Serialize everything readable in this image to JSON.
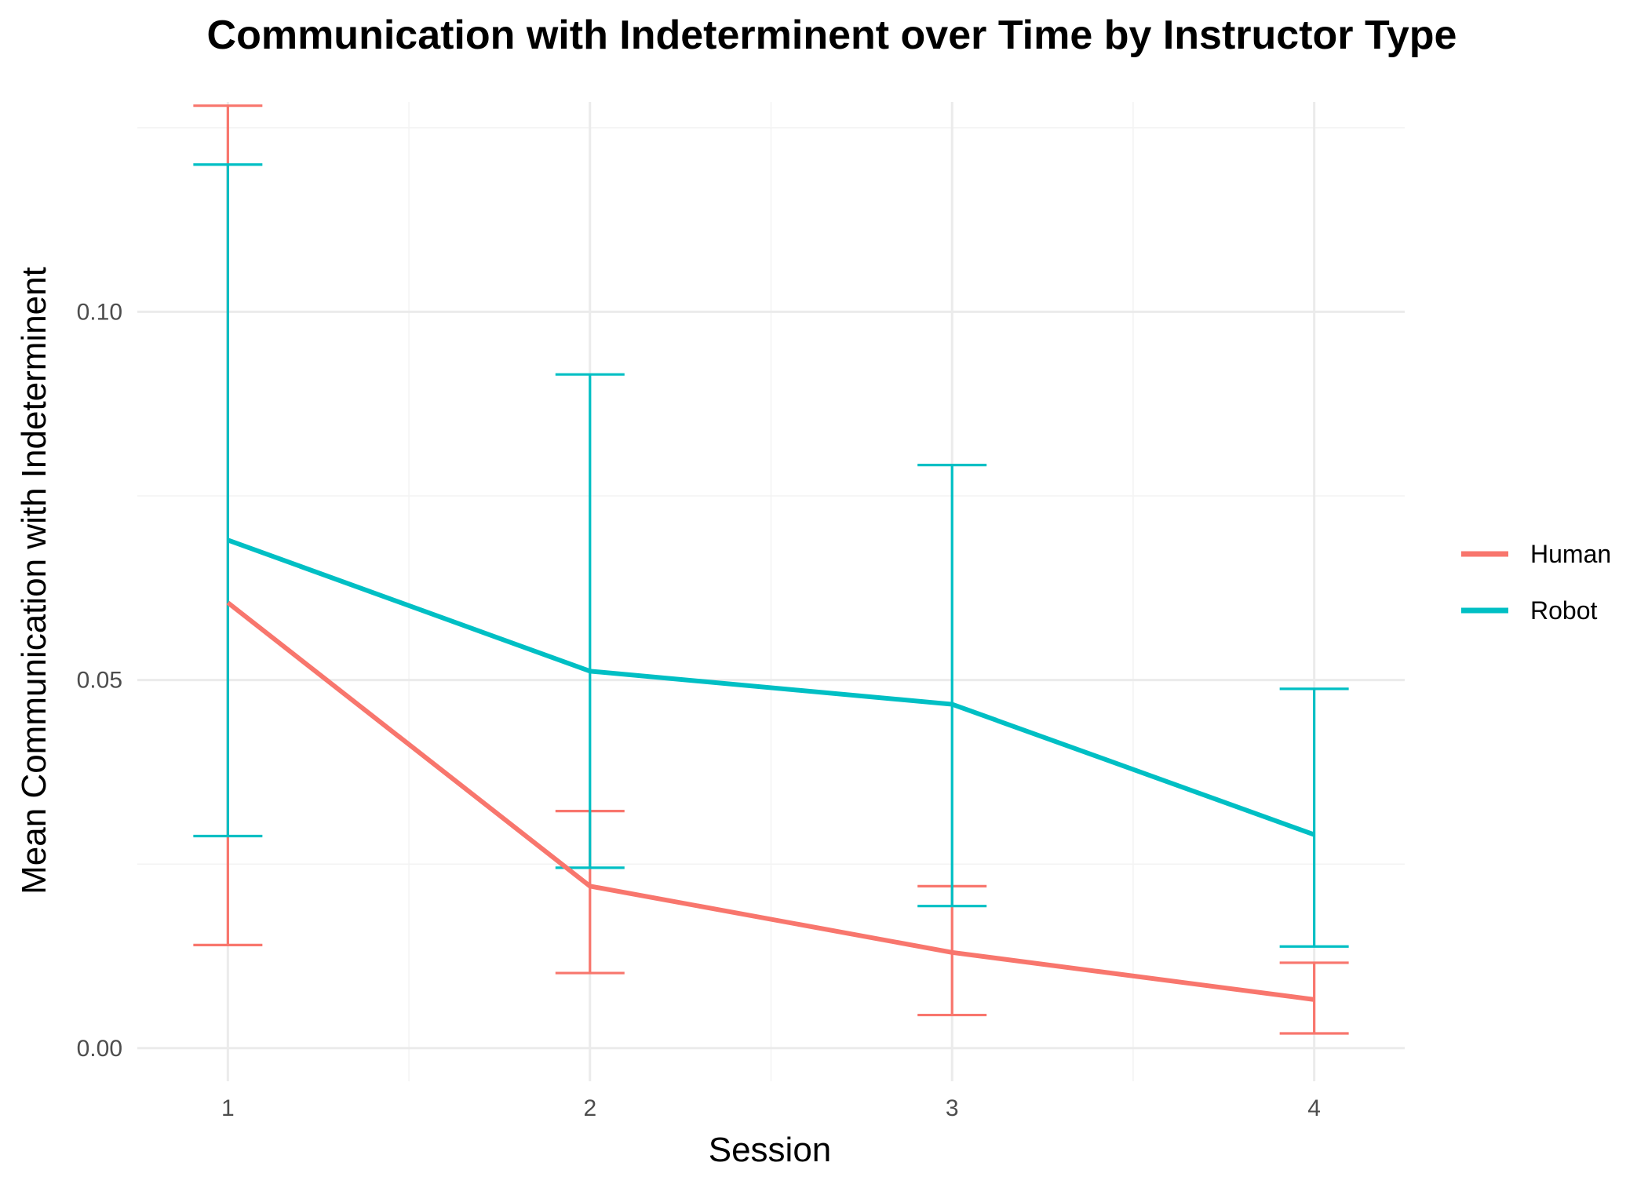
{
  "chart_data": {
    "type": "line",
    "title": "Communication with Indeterminent over Time by Instructor Type",
    "xlabel": "Session",
    "ylabel": "Mean Communication with Indeterminent",
    "x": [
      1,
      2,
      3,
      4
    ],
    "x_tick_labels": [
      "1",
      "2",
      "3",
      "4"
    ],
    "xlim": [
      0.75,
      4.25
    ],
    "ylim": [
      -0.0045,
      0.1285
    ],
    "y_ticks": [
      0.0,
      0.05,
      0.1
    ],
    "y_tick_labels": [
      "0.00",
      "0.05",
      "0.10"
    ],
    "grid": true,
    "legend_position": "right",
    "series": [
      {
        "name": "Human",
        "color": "#F8766D",
        "values": [
          0.0605,
          0.022,
          0.013,
          0.0066
        ],
        "error_lower": [
          0.014,
          0.0102,
          0.0045,
          0.002
        ],
        "error_upper": [
          0.128,
          0.0322,
          0.022,
          0.0116
        ]
      },
      {
        "name": "Robot",
        "color": "#00BFC4",
        "values": [
          0.069,
          0.0512,
          0.0467,
          0.029
        ],
        "error_lower": [
          0.0288,
          0.0245,
          0.0193,
          0.0138
        ],
        "error_upper": [
          0.12,
          0.0915,
          0.0792,
          0.0488
        ]
      }
    ]
  }
}
